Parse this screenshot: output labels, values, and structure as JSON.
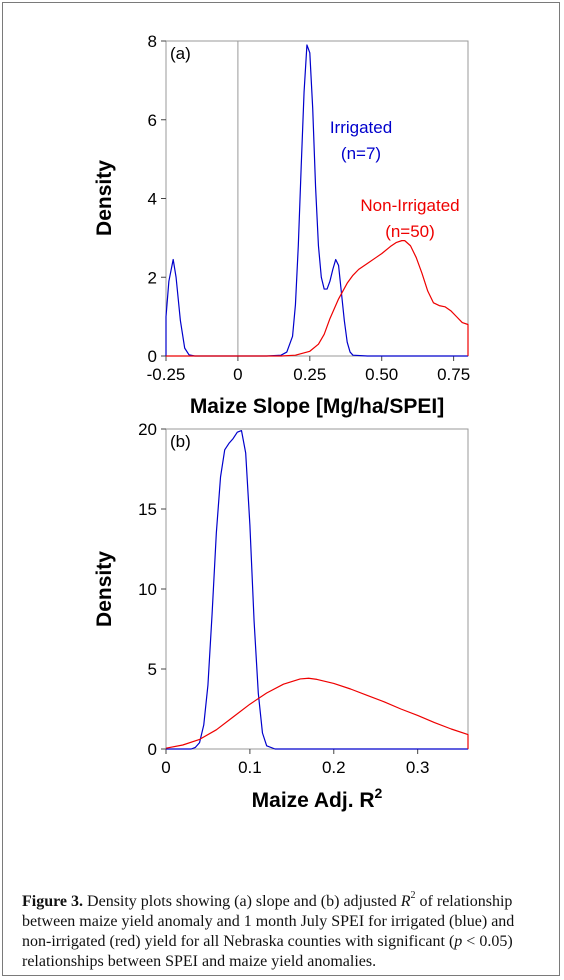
{
  "chart_data": [
    {
      "type": "line",
      "panel_label": "(a)",
      "xlabel": "Maize Slope [Mg/ha/SPEI]",
      "ylabel": "Density",
      "xlim": [
        -0.25,
        0.8
      ],
      "ylim": [
        0,
        8
      ],
      "xticks": [
        -0.25,
        0,
        0.25,
        0.5,
        0.75
      ],
      "xtick_labels": [
        "-0.25",
        "0",
        "0.25",
        "0.50",
        "0.75"
      ],
      "yticks": [
        0,
        2,
        4,
        6,
        8
      ],
      "vline_x": 0,
      "series": [
        {
          "name": "Irrigated (n=7)",
          "label_lines": [
            "Irrigated",
            "(n=7)"
          ],
          "color": "#0000cc",
          "x": [
            -0.25,
            -0.25,
            -0.24,
            -0.225,
            -0.215,
            -0.2,
            -0.185,
            -0.17,
            -0.15,
            -0.1,
            0.0,
            0.1,
            0.15,
            0.17,
            0.19,
            0.2,
            0.21,
            0.22,
            0.23,
            0.24,
            0.25,
            0.26,
            0.27,
            0.28,
            0.29,
            0.3,
            0.31,
            0.32,
            0.33,
            0.34,
            0.35,
            0.36,
            0.37,
            0.38,
            0.39,
            0.4,
            0.45,
            0.5,
            0.6,
            0.7,
            0.8
          ],
          "y": [
            0,
            1.0,
            1.9,
            2.45,
            2.0,
            0.9,
            0.2,
            0.03,
            0,
            0,
            0,
            0,
            0.02,
            0.1,
            0.5,
            1.3,
            2.8,
            4.8,
            6.7,
            7.9,
            7.7,
            6.3,
            4.3,
            2.8,
            2.0,
            1.7,
            1.7,
            1.9,
            2.2,
            2.45,
            2.3,
            1.6,
            0.9,
            0.35,
            0.1,
            0.02,
            0,
            0,
            0,
            0,
            0
          ]
        },
        {
          "name": "Non-Irrigated (n=50)",
          "label_lines": [
            "Non-Irrigated",
            "(n=50)"
          ],
          "color": "#ee0000",
          "x": [
            -0.25,
            0.0,
            0.15,
            0.2,
            0.25,
            0.28,
            0.3,
            0.32,
            0.35,
            0.38,
            0.4,
            0.42,
            0.45,
            0.48,
            0.5,
            0.53,
            0.55,
            0.57,
            0.58,
            0.6,
            0.62,
            0.64,
            0.66,
            0.68,
            0.7,
            0.72,
            0.74,
            0.76,
            0.78,
            0.8,
            0.8
          ],
          "y": [
            0,
            0,
            0,
            0.02,
            0.12,
            0.3,
            0.55,
            0.95,
            1.45,
            1.85,
            2.05,
            2.2,
            2.35,
            2.5,
            2.6,
            2.78,
            2.88,
            2.93,
            2.93,
            2.8,
            2.5,
            2.1,
            1.65,
            1.35,
            1.28,
            1.25,
            1.15,
            1.0,
            0.85,
            0.8,
            0
          ]
        }
      ]
    },
    {
      "type": "line",
      "panel_label": "(b)",
      "xlabel": "Maize Adj. R",
      "xlabel_superscript": "2",
      "ylabel": "Density",
      "xlim": [
        0,
        0.36
      ],
      "ylim": [
        0,
        20
      ],
      "xticks": [
        0,
        0.1,
        0.2,
        0.3
      ],
      "xtick_labels": [
        "0",
        "0.1",
        "0.2",
        "0.3"
      ],
      "yticks": [
        0,
        5,
        10,
        15,
        20
      ],
      "vline_x": 0,
      "series": [
        {
          "name": "Irrigated",
          "color": "#0000cc",
          "x": [
            0,
            0.03,
            0.035,
            0.04,
            0.045,
            0.05,
            0.055,
            0.06,
            0.065,
            0.07,
            0.075,
            0.08,
            0.085,
            0.09,
            0.095,
            0.1,
            0.105,
            0.11,
            0.115,
            0.12,
            0.13,
            0.36
          ],
          "y": [
            0,
            0,
            0.1,
            0.4,
            1.5,
            4.0,
            8.5,
            13.5,
            17.0,
            18.7,
            19.1,
            19.4,
            19.8,
            19.9,
            18.5,
            14.0,
            8.0,
            3.5,
            1.0,
            0.2,
            0,
            0
          ]
        },
        {
          "name": "Non-Irrigated",
          "color": "#ee0000",
          "x": [
            0,
            0.02,
            0.04,
            0.06,
            0.08,
            0.1,
            0.12,
            0.14,
            0.16,
            0.17,
            0.18,
            0.2,
            0.22,
            0.24,
            0.26,
            0.28,
            0.3,
            0.32,
            0.34,
            0.36,
            0.36
          ],
          "y": [
            0.05,
            0.25,
            0.6,
            1.2,
            2.0,
            2.8,
            3.5,
            4.05,
            4.38,
            4.42,
            4.35,
            4.1,
            3.75,
            3.35,
            2.95,
            2.5,
            2.1,
            1.65,
            1.25,
            0.9,
            0
          ]
        }
      ]
    }
  ],
  "caption": {
    "label": "Figure 3.",
    "part1": " Density plots showing (a) slope and (b) adjusted ",
    "r_symbol": "R",
    "r_superscript": "2",
    "part2": " of relationship between maize yield anomaly and 1 month July SPEI for irrigated (blue) and non-irrigated (red) yield for all Nebraska counties with significant (",
    "p_symbol": "p",
    "p_condition": " < 0.05) relationships between SPEI and maize yield anomalies."
  }
}
